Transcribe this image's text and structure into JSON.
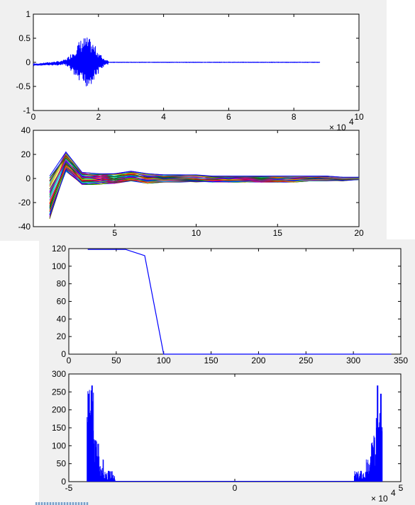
{
  "chart_data": [
    {
      "type": "line",
      "title": "",
      "xlabel": "",
      "ylabel": "",
      "xlim": [
        0,
        10
      ],
      "ylim": [
        -1,
        1
      ],
      "x_ticks": [
        0,
        2,
        4,
        6,
        8,
        10
      ],
      "y_ticks": [
        -1,
        -0.5,
        0,
        0.5,
        1
      ],
      "x_exponent_label": "x 10^4",
      "series": [
        {
          "color": "#0000ff",
          "description_points": [
            [
              0,
              -0.05
            ],
            [
              0.8,
              -0.02
            ],
            [
              1.5,
              0.37
            ],
            [
              1.5,
              -0.52
            ],
            [
              2.2,
              0.0
            ],
            [
              8.8,
              0.0
            ]
          ]
        }
      ]
    },
    {
      "type": "line",
      "title": "",
      "xlim": [
        0,
        20
      ],
      "ylim": [
        -40,
        40
      ],
      "x_ticks": [
        5,
        10,
        15,
        20
      ],
      "y_ticks": [
        -40,
        -20,
        0,
        20,
        40
      ],
      "series_count": 36,
      "x": [
        1,
        2,
        3,
        4,
        5,
        6,
        7,
        8,
        9,
        10,
        11,
        12,
        13,
        14,
        15,
        16,
        17,
        18,
        19,
        20
      ],
      "upper_envelope": [
        2,
        22,
        5,
        4,
        4,
        6,
        4,
        3,
        3,
        3,
        2,
        2,
        2,
        2,
        2,
        2,
        2,
        2,
        1,
        1
      ],
      "lower_envelope": [
        -34,
        6,
        -5,
        -5,
        -4,
        -2,
        -4,
        -3,
        -3,
        -3,
        -3,
        -3,
        -3,
        -3,
        -3,
        -3,
        -2,
        -2,
        -2,
        -1
      ]
    },
    {
      "type": "line",
      "title": "",
      "xlim": [
        0,
        350
      ],
      "ylim": [
        0,
        120
      ],
      "x_ticks": [
        0,
        50,
        100,
        150,
        200,
        250,
        300,
        350
      ],
      "y_ticks": [
        0,
        20,
        40,
        60,
        80,
        100,
        120
      ],
      "series": [
        {
          "color": "#0000ff",
          "x": [
            20,
            40,
            60,
            80,
            100,
            120,
            200,
            340
          ],
          "y": [
            119,
            119,
            119,
            112,
            0,
            0,
            0,
            0
          ]
        }
      ]
    },
    {
      "type": "bar",
      "title": "",
      "xlim": [
        -5,
        5
      ],
      "ylim": [
        0,
        300
      ],
      "x_ticks": [
        -5,
        0,
        5
      ],
      "y_ticks": [
        0,
        50,
        100,
        150,
        200,
        250,
        300
      ],
      "x_exponent_label": "x 10^4",
      "peaks": [
        {
          "x": -4.4,
          "y": 245
        },
        {
          "x": -4.3,
          "y": 268
        },
        {
          "x": -4.2,
          "y": 115
        },
        {
          "x": -4.1,
          "y": 70
        },
        {
          "x": -3.8,
          "y": 30
        },
        {
          "x": 3.8,
          "y": 30
        },
        {
          "x": 4.1,
          "y": 70
        },
        {
          "x": 4.2,
          "y": 115
        },
        {
          "x": 4.3,
          "y": 268
        },
        {
          "x": 4.4,
          "y": 245
        }
      ]
    }
  ]
}
